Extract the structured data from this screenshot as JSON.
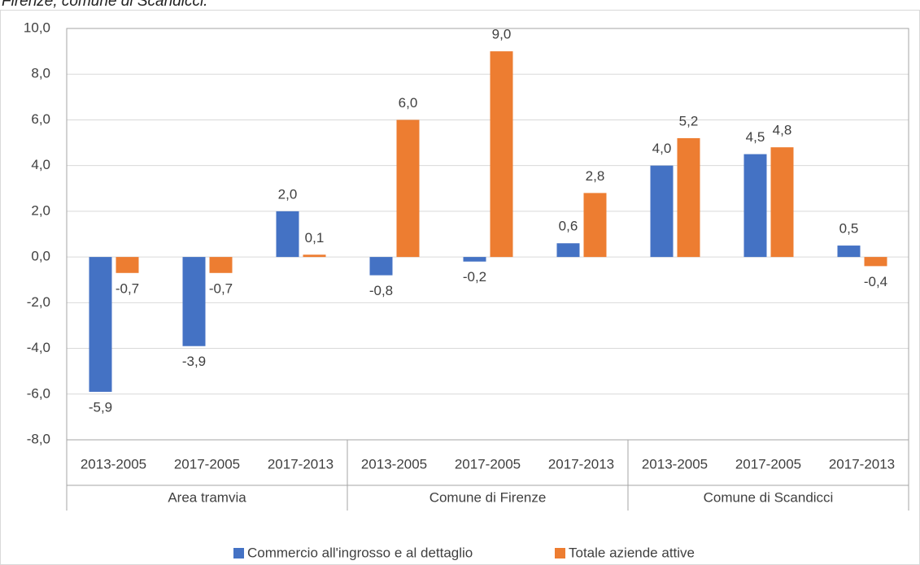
{
  "chart_data": {
    "type": "bar",
    "title": "Firenze, comune di Scandicci.",
    "groups": [
      {
        "name": "Area tramvia",
        "categories": [
          "2013-2005",
          "2017-2005",
          "2017-2013"
        ]
      },
      {
        "name": "Comune di Firenze",
        "categories": [
          "2013-2005",
          "2017-2005",
          "2017-2013"
        ]
      },
      {
        "name": "Comune di Scandicci",
        "categories": [
          "2013-2005",
          "2017-2005",
          "2017-2013"
        ]
      }
    ],
    "series": [
      {
        "name": "Commercio all'ingrosso e al dettaglio",
        "color": "#4472c4",
        "values": [
          -5.9,
          -3.9,
          2.0,
          -0.8,
          -0.2,
          0.6,
          4.0,
          4.5,
          0.5
        ],
        "value_labels": [
          "-5,9",
          "-3,9",
          "2,0",
          "-0,8",
          "-0,2",
          "0,6",
          "4,0",
          "4,5",
          "0,5"
        ]
      },
      {
        "name": "Totale aziende attive",
        "color": "#ed7d31",
        "values": [
          -0.7,
          -0.7,
          0.1,
          6.0,
          9.0,
          2.8,
          5.2,
          4.8,
          -0.4
        ],
        "value_labels": [
          "-0,7",
          "-0,7",
          "0,1",
          "6,0",
          "9,0",
          "2,8",
          "5,2",
          "4,8",
          "-0,4"
        ]
      }
    ],
    "ylim": [
      -8,
      10
    ],
    "yticks": [
      {
        "value": -8,
        "label": "-8,0"
      },
      {
        "value": -6,
        "label": "-6,0"
      },
      {
        "value": -4,
        "label": "-4,0"
      },
      {
        "value": -2,
        "label": "-2,0"
      },
      {
        "value": 0,
        "label": "0,0"
      },
      {
        "value": 2,
        "label": "2,0"
      },
      {
        "value": 4,
        "label": "4,0"
      },
      {
        "value": 6,
        "label": "6,0"
      },
      {
        "value": 8,
        "label": "8,0"
      },
      {
        "value": 10,
        "label": "10,0"
      }
    ],
    "grid": true,
    "legend": "bottom"
  }
}
